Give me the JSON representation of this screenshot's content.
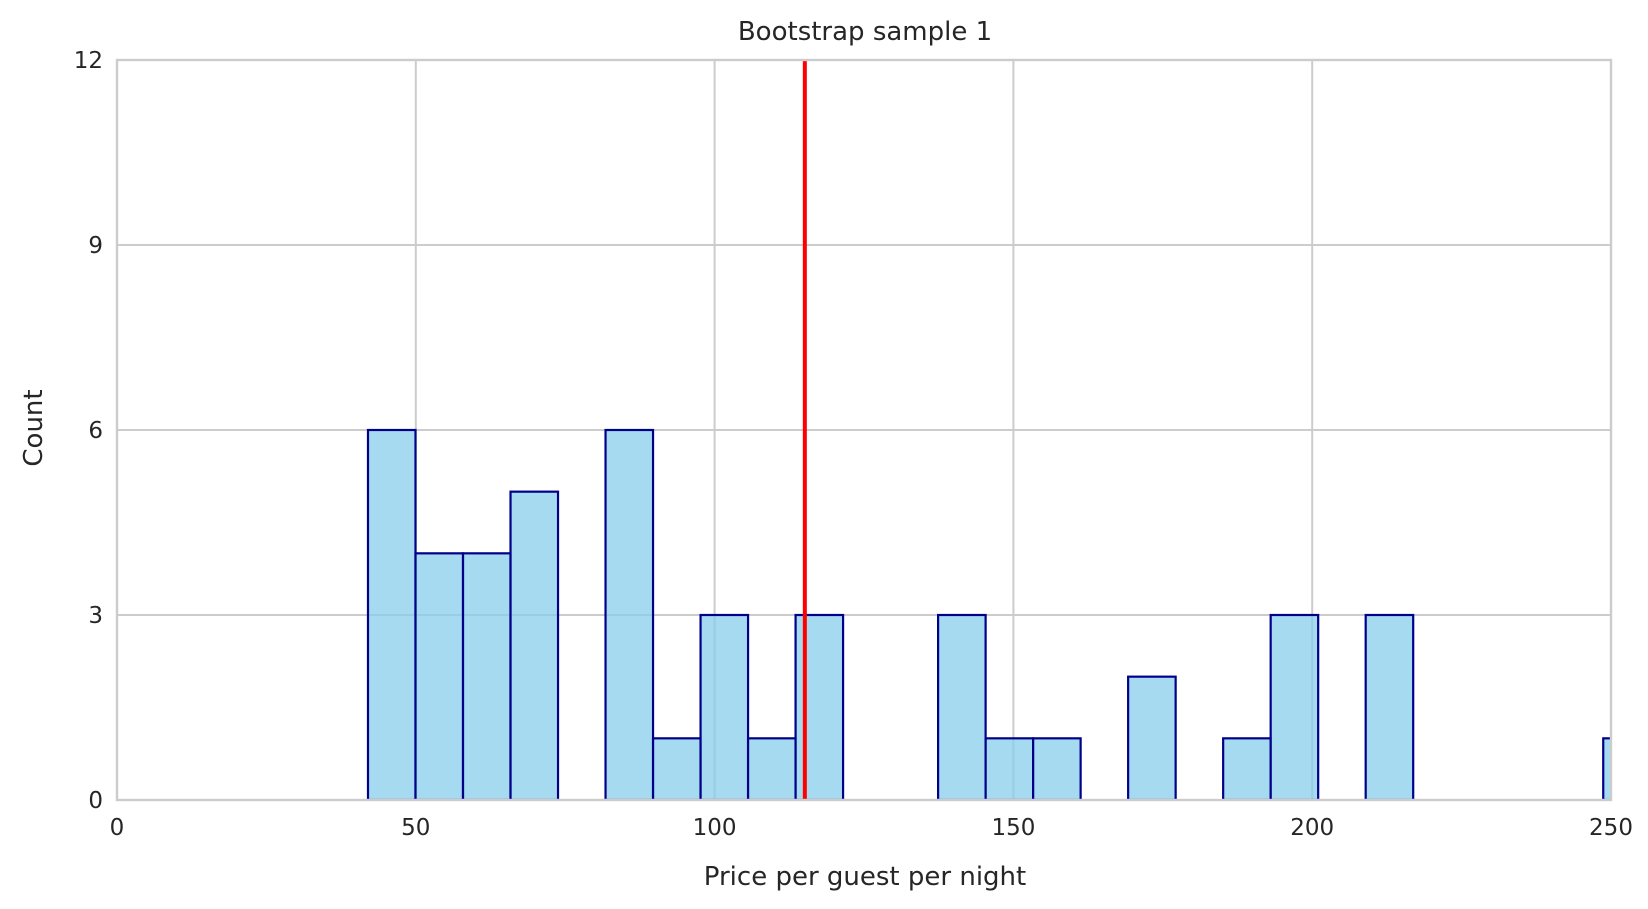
{
  "chart_data": {
    "type": "bar",
    "subtype": "histogram",
    "title": "Bootstrap sample 1",
    "xlabel": "Price per guest per night",
    "ylabel": "Count",
    "xlim": [
      0,
      250
    ],
    "ylim": [
      0,
      12
    ],
    "xticks": [
      0,
      50,
      100,
      150,
      200,
      250
    ],
    "yticks": [
      0,
      3,
      6,
      9,
      12
    ],
    "grid": true,
    "bin_width": 7.95,
    "bins": [
      {
        "x0": 42.0,
        "x1": 49.95,
        "count": 6
      },
      {
        "x0": 49.95,
        "x1": 57.9,
        "count": 4
      },
      {
        "x0": 57.9,
        "x1": 65.85,
        "count": 4
      },
      {
        "x0": 65.85,
        "x1": 73.8,
        "count": 5
      },
      {
        "x0": 73.8,
        "x1": 81.75,
        "count": 0
      },
      {
        "x0": 81.75,
        "x1": 89.7,
        "count": 6
      },
      {
        "x0": 89.7,
        "x1": 97.65,
        "count": 1
      },
      {
        "x0": 97.65,
        "x1": 105.6,
        "count": 3
      },
      {
        "x0": 105.6,
        "x1": 113.55,
        "count": 1
      },
      {
        "x0": 113.55,
        "x1": 121.5,
        "count": 3
      },
      {
        "x0": 121.5,
        "x1": 129.45,
        "count": 0
      },
      {
        "x0": 129.45,
        "x1": 137.4,
        "count": 0
      },
      {
        "x0": 137.4,
        "x1": 145.35,
        "count": 3
      },
      {
        "x0": 145.35,
        "x1": 153.3,
        "count": 1
      },
      {
        "x0": 153.3,
        "x1": 161.25,
        "count": 1
      },
      {
        "x0": 161.25,
        "x1": 169.2,
        "count": 0
      },
      {
        "x0": 169.2,
        "x1": 177.15,
        "count": 2
      },
      {
        "x0": 177.15,
        "x1": 185.1,
        "count": 0
      },
      {
        "x0": 185.1,
        "x1": 193.05,
        "count": 1
      },
      {
        "x0": 193.05,
        "x1": 201.0,
        "count": 3
      },
      {
        "x0": 201.0,
        "x1": 208.95,
        "count": 0
      },
      {
        "x0": 208.95,
        "x1": 216.9,
        "count": 3
      },
      {
        "x0": 216.9,
        "x1": 224.85,
        "count": 0
      },
      {
        "x0": 224.85,
        "x1": 232.8,
        "count": 0
      },
      {
        "x0": 232.8,
        "x1": 240.75,
        "count": 0
      },
      {
        "x0": 240.75,
        "x1": 248.7,
        "count": 0
      },
      {
        "x0": 248.7,
        "x1": 256.65,
        "count": 1
      }
    ],
    "reference_line": {
      "x": 115.1,
      "color": "#ff0000"
    },
    "colors": {
      "bar_fill": "#87ceeb",
      "bar_edge": "#00008b",
      "grid": "#cccccc",
      "spine": "#cccccc",
      "text": "#262626"
    }
  }
}
